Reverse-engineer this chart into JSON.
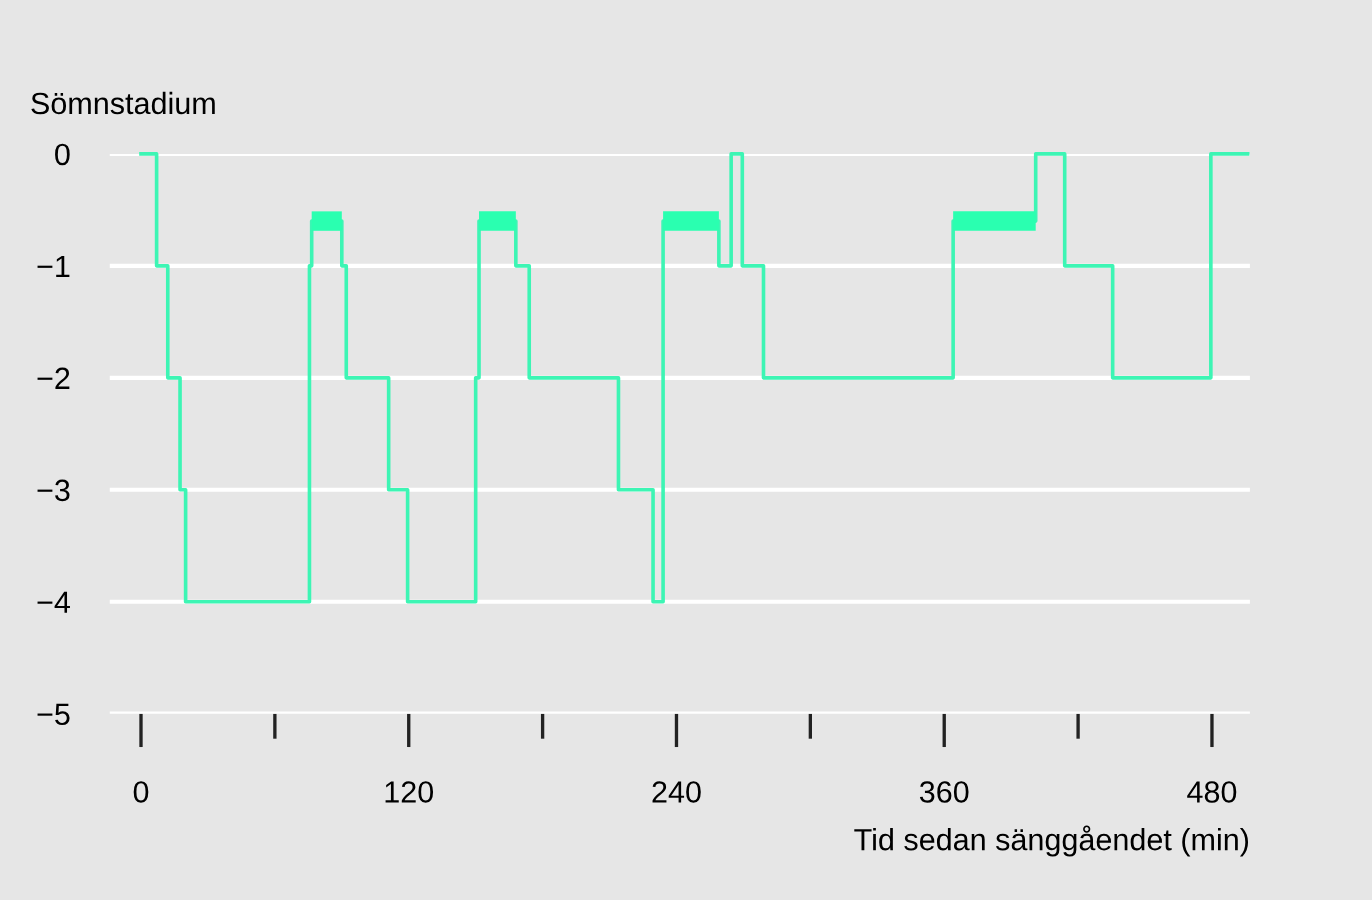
{
  "chart_data": {
    "type": "step",
    "ylabel": "Sömnstadium",
    "xlabel": "Tid sedan sänggåendet (min)",
    "x": [
      0,
      7,
      12,
      17.5,
      20,
      75.5,
      76.5,
      90,
      92,
      111,
      119.5,
      150,
      151.5,
      168,
      174,
      214,
      229.5,
      234,
      259,
      264.5,
      269.5,
      279,
      364,
      401,
      414,
      435.5,
      479.5,
      496
    ],
    "series": [
      {
        "color": "#3df5b4",
        "values": [
          0,
          -1,
          -2,
          -3,
          -4,
          -1,
          -0.6,
          -1,
          -2,
          -3,
          -4,
          -2,
          -0.6,
          -1,
          -2,
          -3,
          -4,
          -0.6,
          -1,
          0,
          -1,
          -2,
          -0.6,
          0,
          -1,
          -2,
          0,
          0
        ]
      },
      {
        "color": "#2affb0",
        "type": "line",
        "x": [
          76.5,
          90
        ],
        "values": [
          -0.6,
          -0.6
        ]
      },
      {
        "color": "#2affb0",
        "type": "line",
        "x": [
          151.5,
          168
        ],
        "values": [
          -0.6,
          -0.6
        ]
      },
      {
        "color": "#2affb0",
        "type": "line",
        "x": [
          234,
          259
        ],
        "values": [
          -0.6,
          -0.6
        ]
      },
      {
        "color": "#2affb0",
        "type": "line",
        "x": [
          364,
          401
        ],
        "values": [
          -0.6,
          -0.6
        ]
      }
    ],
    "xlim": [
      -14,
      497
    ],
    "ylim": [
      -5,
      0
    ],
    "xticks": [
      0,
      {
        "value": 60,
        "label": null
      },
      120,
      {
        "value": 180,
        "label": null
      },
      240,
      {
        "value": 300,
        "label": null
      },
      360,
      {
        "value": 420,
        "label": null
      },
      480
    ],
    "yticks": [
      0,
      {
        "value": -1,
        "label": "−1"
      },
      {
        "value": -2,
        "label": "−2"
      },
      {
        "value": -3,
        "label": "−3"
      },
      {
        "value": -4,
        "label": "−4"
      },
      {
        "value": -5,
        "label": "−5"
      }
    ],
    "grid": "y",
    "legend": false
  }
}
